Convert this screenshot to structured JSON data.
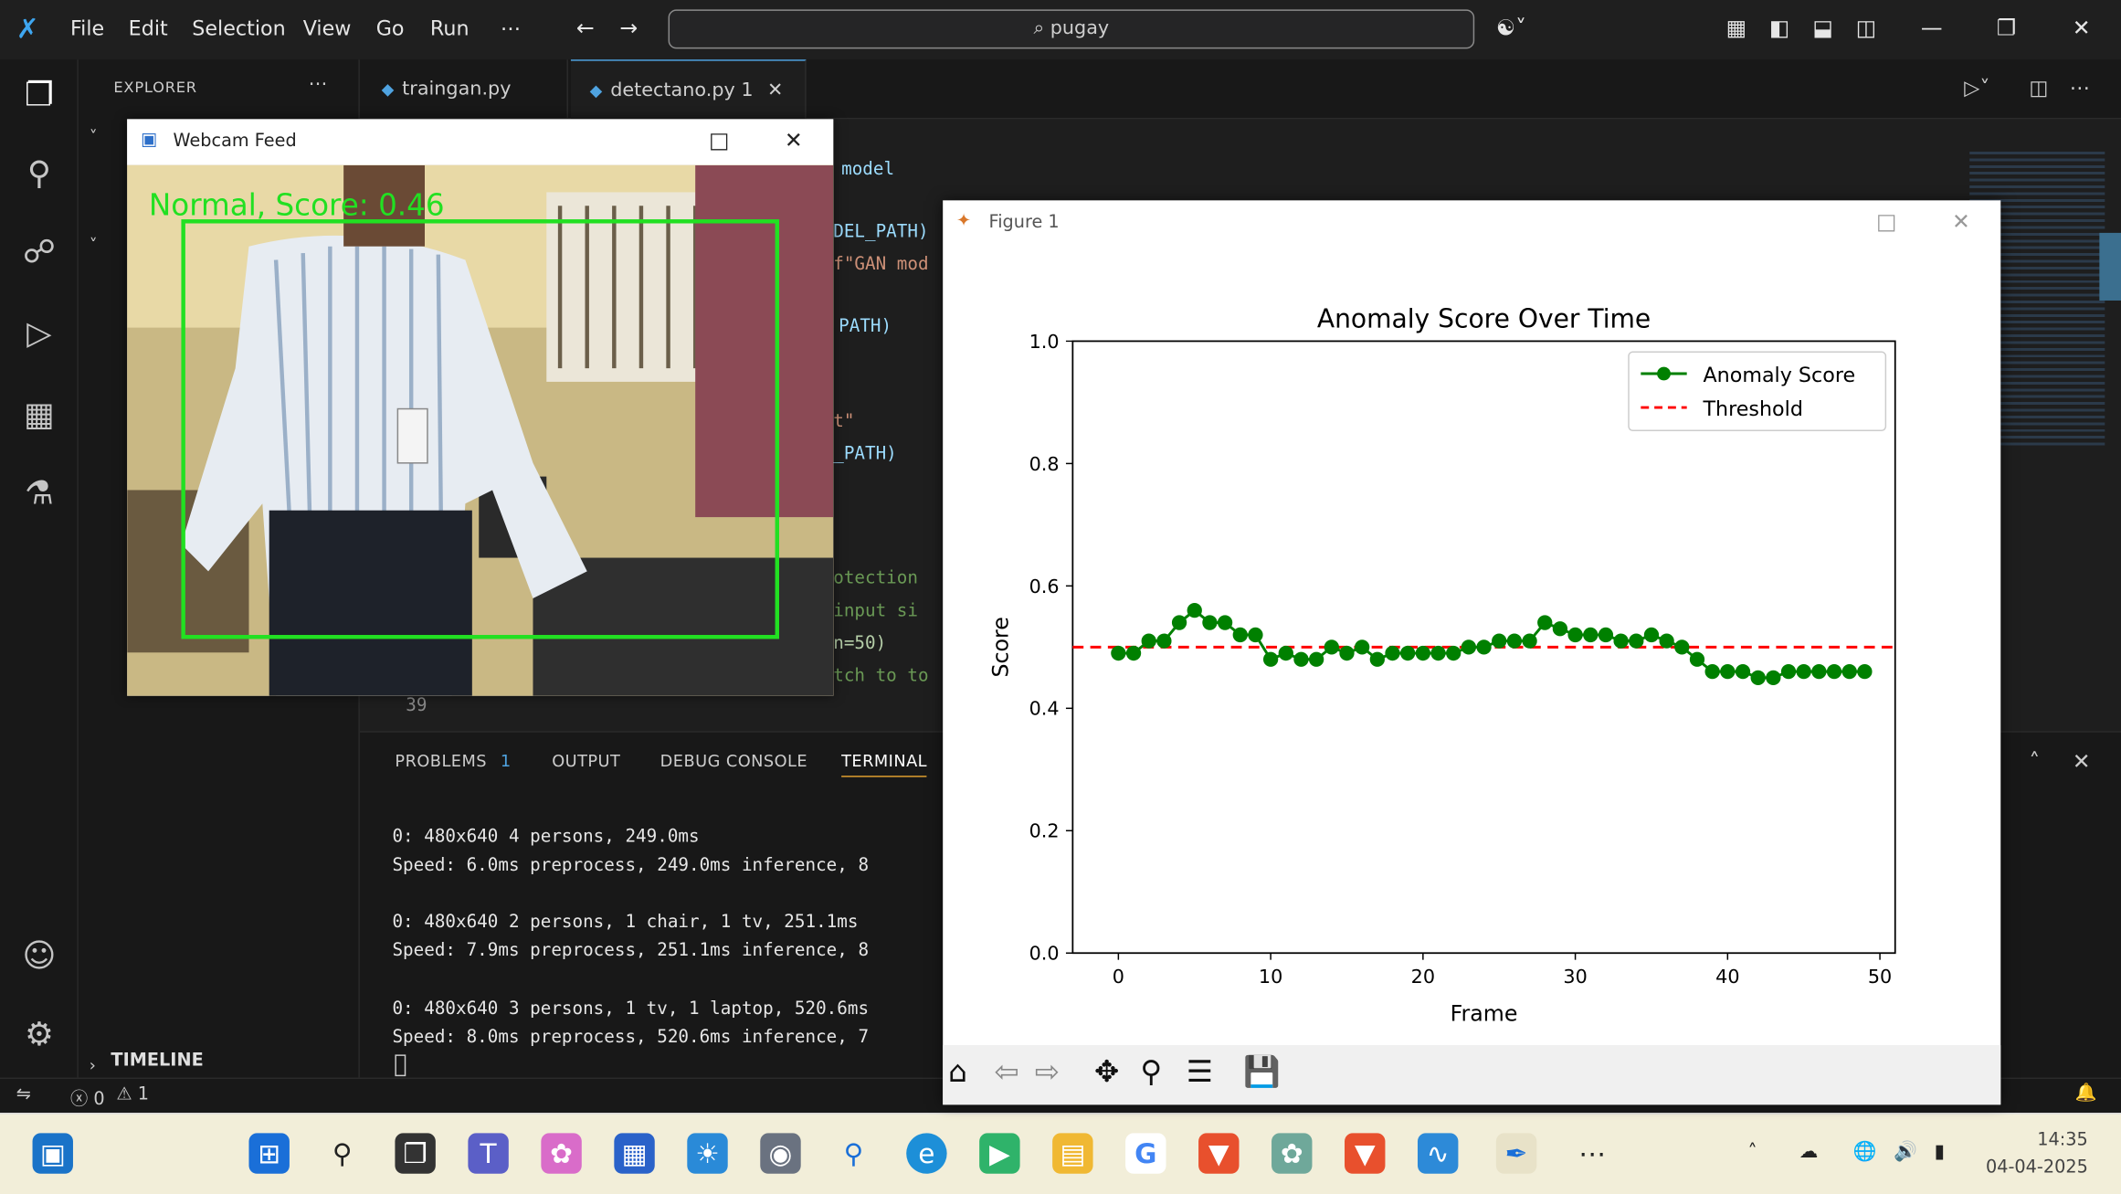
{
  "titlebar": {
    "menus": [
      "File",
      "Edit",
      "Selection",
      "View",
      "Go",
      "Run",
      "⋯"
    ],
    "search_text": "⌕ pugay"
  },
  "sidebar": {
    "explorer_title": "EXPLORER",
    "timeline_label": "TIMELINE"
  },
  "tabs": [
    {
      "label": "traingan.py"
    },
    {
      "label": "detectano.py 1"
    }
  ],
  "editor": {
    "lines": [
      "model",
      "DEL_PATH)",
      "f\"GAN mod",
      "PATH)",
      "t\"",
      "_PATH)",
      "otection",
      "input si",
      "n=50)",
      "tch to to"
    ],
    "line_number": "39"
  },
  "panel": {
    "tabs": [
      "PROBLEMS",
      "OUTPUT",
      "DEBUG CONSOLE",
      "TERMINAL"
    ],
    "problems_count": "1",
    "terminal_lines": [
      "0: 480x640 4 persons, 249.0ms",
      "Speed: 6.0ms preprocess, 249.0ms inference, 8",
      "0: 480x640 2 persons, 1 chair, 1 tv, 251.1ms",
      "Speed: 7.9ms preprocess, 251.1ms inference, 8",
      "0: 480x640 3 persons, 1 tv, 1 laptop, 520.6ms",
      "Speed: 8.0ms preprocess, 520.6ms inference, 7"
    ]
  },
  "statusbar": {
    "errors": "ⓧ 0",
    "warnings": "⚠ 1"
  },
  "webcam": {
    "title": "Webcam Feed",
    "overlay_text": "Normal, Score: 0.46"
  },
  "figure": {
    "title": "Figure 1"
  },
  "chart_data": {
    "type": "line",
    "title": "Anomaly Score Over Time",
    "xlabel": "Frame",
    "ylabel": "Score",
    "xlim": [
      -3,
      51
    ],
    "ylim": [
      0.0,
      1.0
    ],
    "xticks": [
      0,
      10,
      20,
      30,
      40,
      50
    ],
    "yticks": [
      0.0,
      0.2,
      0.4,
      0.6,
      0.8,
      1.0
    ],
    "legend_position": "top-right",
    "series": [
      {
        "name": "Anomaly Score",
        "color": "#008000",
        "style": "line-with-markers",
        "x": [
          0,
          1,
          2,
          3,
          4,
          5,
          6,
          7,
          8,
          9,
          10,
          11,
          12,
          13,
          14,
          15,
          16,
          17,
          18,
          19,
          20,
          21,
          22,
          23,
          24,
          25,
          26,
          27,
          28,
          29,
          30,
          31,
          32,
          33,
          34,
          35,
          36,
          37,
          38,
          39,
          40,
          41,
          42,
          43,
          44,
          45,
          46,
          47,
          48,
          49
        ],
        "values": [
          0.49,
          0.49,
          0.51,
          0.51,
          0.54,
          0.56,
          0.54,
          0.54,
          0.52,
          0.52,
          0.48,
          0.49,
          0.48,
          0.48,
          0.5,
          0.49,
          0.5,
          0.48,
          0.49,
          0.49,
          0.49,
          0.49,
          0.49,
          0.5,
          0.5,
          0.51,
          0.51,
          0.51,
          0.54,
          0.53,
          0.52,
          0.52,
          0.52,
          0.51,
          0.51,
          0.52,
          0.51,
          0.5,
          0.48,
          0.46,
          0.46,
          0.46,
          0.45,
          0.45,
          0.46,
          0.46,
          0.46,
          0.46,
          0.46,
          0.46
        ]
      },
      {
        "name": "Threshold",
        "color": "#ff0000",
        "style": "dashed",
        "value": 0.5
      }
    ]
  },
  "taskbar": {
    "time": "14:35",
    "date": "04-04-2025"
  }
}
